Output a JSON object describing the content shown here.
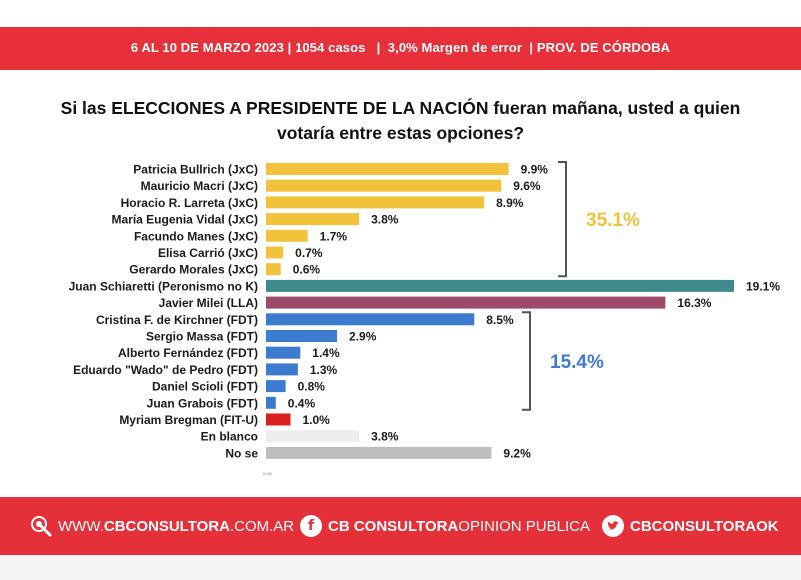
{
  "header": {
    "meta": "6 AL 10 DE MARZO 2023 | 1054 casos   |  3,0% Margen de error  | PROV. DE CÓRDOBA"
  },
  "question": {
    "line1": "Si las ELECCIONES A PRESIDENTE DE LA NACIÓN fueran mañana, usted a quien",
    "line2": "votaría entre estas opciones?"
  },
  "chart_data": {
    "type": "bar",
    "orientation": "horizontal",
    "title": "Si las ELECCIONES A PRESIDENTE DE LA NACIÓN fueran mañana, usted a quien votaría entre estas opciones?",
    "axis_min_label": "0.0%",
    "xlim": [
      0,
      19.1
    ],
    "categories": [
      "Patricia Bullrich (JxC)",
      "Mauricio Macri (JxC)",
      "Horacio R. Larreta (JxC)",
      "María Eugenia Vidal (JxC)",
      "Facundo Manes (JxC)",
      "Elisa Carrió (JxC)",
      "Gerardo Morales (JxC)",
      "Juan Schiaretti (Peronismo no K)",
      "Javier Milei (LLA)",
      "Cristina F. de Kirchner (FDT)",
      "Sergio Massa (FDT)",
      "Alberto Fernández (FDT)",
      "Eduardo \"Wado\" de Pedro (FDT)",
      "Daniel Scioli (FDT)",
      "Juan Grabois (FDT)",
      "Myriam Bregman (FIT-U)",
      "En blanco",
      "No se"
    ],
    "values": [
      9.9,
      9.6,
      8.9,
      3.8,
      1.7,
      0.7,
      0.6,
      19.1,
      16.3,
      8.5,
      2.9,
      1.4,
      1.3,
      0.8,
      0.4,
      1.0,
      3.8,
      9.2
    ],
    "value_labels": [
      "9.9%",
      "9.6%",
      "8.9%",
      "3.8%",
      "1.7%",
      "0.7%",
      "0.6%",
      "19.1%",
      "16.3%",
      "8.5%",
      "2.9%",
      "1.4%",
      "1.3%",
      "0.8%",
      "0.4%",
      "1.0%",
      "3.8%",
      "9.2%"
    ],
    "bar_colors": [
      "#f2c23a",
      "#f2c23a",
      "#f2c23a",
      "#f2c23a",
      "#f2c23a",
      "#f2c23a",
      "#f2c23a",
      "#3f8a8c",
      "#9e4a6a",
      "#3d7bd1",
      "#3d7bd1",
      "#3d7bd1",
      "#3d7bd1",
      "#3d7bd1",
      "#3d7bd1",
      "#d9201e",
      "#ededed",
      "#bdbdbd"
    ],
    "groups": [
      {
        "label": "35.1%",
        "value": 35.1,
        "from": 0,
        "to": 6,
        "color": "#f0c23a"
      },
      {
        "label": "15.4%",
        "value": 15.4,
        "from": 9,
        "to": 14,
        "color": "#3d7bd1"
      }
    ]
  },
  "footer": {
    "web_prefix": "WWW.",
    "web_brand": "CBCONSULTORA",
    "web_suffix": ".COM.AR",
    "facebook_icon_text": "f",
    "facebook_brand": "CB CONSULTORA",
    "facebook_suffix": " OPINION PUBLICA",
    "twitter_handle": "CBCONSULTORAOK"
  }
}
